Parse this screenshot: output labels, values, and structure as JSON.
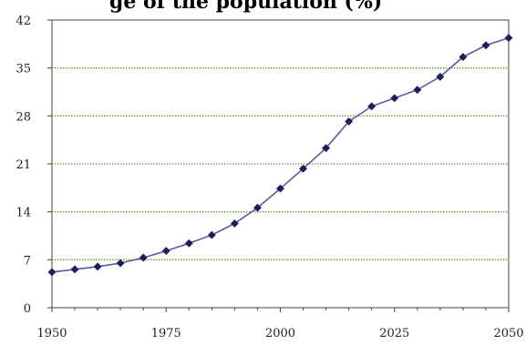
{
  "title_visible": "ge of the population (%)",
  "chart_data": {
    "type": "line",
    "title": "ge of the population (%)",
    "xlabel": "",
    "ylabel": "",
    "xlim": [
      1950,
      2050
    ],
    "ylim": [
      0,
      42
    ],
    "x_ticks": [
      1950,
      1975,
      2000,
      2025,
      2050
    ],
    "y_ticks": [
      0,
      7,
      14,
      21,
      28,
      35,
      42
    ],
    "grid": "horizontal dotted",
    "legend": "none",
    "colors": {
      "line": "#5a5aa6",
      "marker": "#1e1e5a",
      "grid": "#6b9b3a",
      "axis": "#444444"
    },
    "series": [
      {
        "x": [
          1950,
          1955,
          1960,
          1965,
          1970,
          1975,
          1980,
          1985,
          1990,
          1995,
          2000,
          2005,
          2010,
          2015,
          2020,
          2025,
          2030,
          2035,
          2040,
          2045,
          2050
        ],
        "values": [
          5.2,
          5.6,
          6.0,
          6.5,
          7.3,
          8.3,
          9.4,
          10.6,
          12.3,
          14.6,
          17.4,
          20.3,
          23.3,
          27.2,
          29.4,
          30.6,
          31.8,
          33.7,
          36.6,
          38.3,
          39.4
        ]
      }
    ]
  }
}
